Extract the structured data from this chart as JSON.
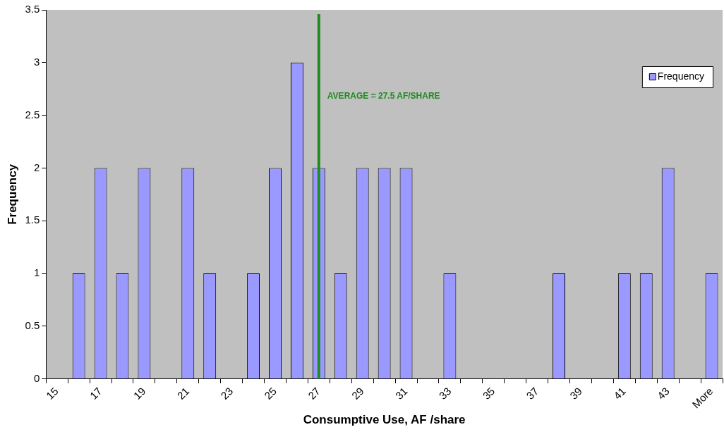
{
  "chart_data": {
    "type": "bar",
    "xlabel": "Consumptive Use, AF /share",
    "ylabel": "Frequency",
    "categories": [
      "15",
      null,
      "17",
      null,
      "19",
      null,
      "21",
      null,
      "23",
      null,
      "25",
      null,
      "27",
      null,
      "29",
      null,
      "31",
      null,
      "33",
      null,
      "35",
      null,
      "37",
      null,
      "39",
      null,
      "41",
      null,
      "43",
      null,
      "More"
    ],
    "series": [
      {
        "name": "Frequency",
        "color": "#9999ff",
        "values": [
          0,
          1,
          2,
          1,
          2,
          0,
          2,
          1,
          0,
          1,
          2,
          3,
          2,
          1,
          2,
          2,
          2,
          0,
          1,
          0,
          0,
          0,
          0,
          1,
          0,
          0,
          1,
          1,
          2,
          0,
          1
        ]
      }
    ],
    "ylim": [
      0,
      3.5
    ],
    "yticks": [
      0,
      0.5,
      1,
      1.5,
      2,
      2.5,
      3,
      3.5
    ],
    "grid": false,
    "legend": "top right",
    "ref_lines": [
      {
        "axis": "x",
        "value": "27",
        "label": "AVERAGE = 27.5 AF/SHARE",
        "color": "#1e8c1e"
      }
    ]
  }
}
